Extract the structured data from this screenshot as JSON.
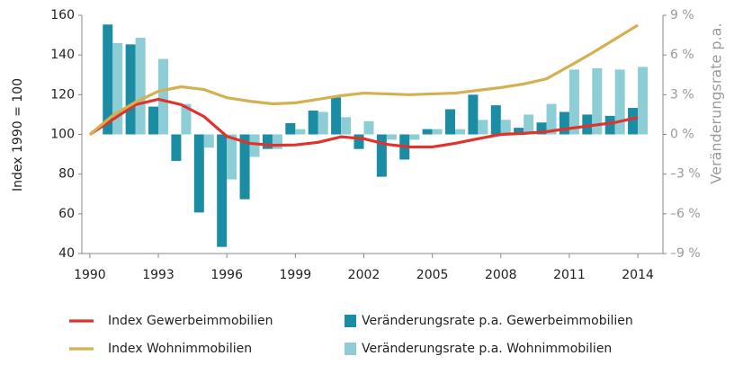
{
  "chart_data": {
    "type": "combo",
    "y_label": "Index 1990 = 100",
    "y2_label": "Veränderungsrate p.a.",
    "x": [
      1990,
      1991,
      1992,
      1993,
      1994,
      1995,
      1996,
      1997,
      1998,
      1999,
      2000,
      2001,
      2002,
      2003,
      2004,
      2005,
      2006,
      2007,
      2008,
      2009,
      2010,
      2011,
      2012,
      2013,
      2014
    ],
    "xlim": [
      1989.65,
      2015.1
    ],
    "xticks": [
      1990,
      1993,
      1996,
      1999,
      2002,
      2005,
      2008,
      2011,
      2014
    ],
    "ylim": [
      40,
      160
    ],
    "yticks": [
      40,
      60,
      80,
      100,
      120,
      140,
      160
    ],
    "y2lim": [
      -9,
      9
    ],
    "y2ticks": [
      {
        "value": -9,
        "label": "–9 %"
      },
      {
        "value": -6,
        "label": "–6 %"
      },
      {
        "value": -3,
        "label": "–3 %"
      },
      {
        "value": 0,
        "label": "0 %"
      },
      {
        "value": 3,
        "label": "3 %"
      },
      {
        "value": 6,
        "label": "6 %"
      },
      {
        "value": 9,
        "label": "9 %"
      }
    ],
    "legend": "bottom",
    "series": [
      {
        "name": "Veränderungsrate p.a. Gewerbeimmobilien",
        "type": "bar",
        "axis": "y2",
        "color": "#1a8ca3",
        "values": [
          null,
          8.3,
          6.8,
          2.1,
          -2.0,
          -5.9,
          -8.5,
          -4.9,
          -1.1,
          0.85,
          1.8,
          2.8,
          -1.1,
          -3.2,
          -1.9,
          0.4,
          1.9,
          3.0,
          2.2,
          0.5,
          0.9,
          1.7,
          1.5,
          1.4,
          2.0
        ]
      },
      {
        "name": "Veränderungsrate p.a. Wohnimmobilien",
        "type": "bar",
        "axis": "y2",
        "color": "#8dcdd6",
        "values": [
          null,
          6.9,
          7.3,
          5.7,
          2.3,
          -1.0,
          -3.4,
          -1.7,
          -1.1,
          0.4,
          1.7,
          1.3,
          1.0,
          -0.4,
          -0.4,
          0.4,
          0.4,
          1.1,
          1.1,
          1.5,
          2.3,
          4.9,
          5.0,
          4.9,
          5.1
        ]
      },
      {
        "name": "Index Gewerbeimmobilien",
        "type": "line",
        "color": "#e0332c",
        "values": [
          100,
          107.5,
          115,
          117.7,
          115,
          109,
          99,
          95.5,
          94.5,
          94.7,
          96,
          98.8,
          97.8,
          95,
          93.7,
          93.7,
          95.5,
          97.8,
          100,
          100.5,
          101.4,
          103,
          104.5,
          106,
          108.6
        ]
      },
      {
        "name": "Index Wohnimmobilien",
        "type": "line",
        "color": "#d3b152",
        "values": [
          100,
          109.5,
          116.3,
          121.7,
          124,
          122.6,
          118.5,
          116.7,
          115.4,
          115.9,
          117.7,
          119.5,
          120.8,
          120.4,
          120,
          120.4,
          120.8,
          122.2,
          123.6,
          125.4,
          128,
          134.4,
          141,
          148,
          155
        ]
      }
    ]
  }
}
